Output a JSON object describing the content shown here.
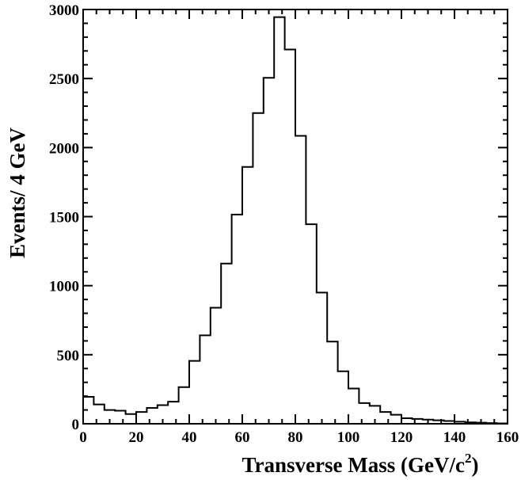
{
  "chart_data": {
    "type": "histogram",
    "title": "",
    "xlabel": "Transverse Mass (GeV/c",
    "xlabel_superscript": "2",
    "xlabel_close": ")",
    "ylabel": "Events/ 4 GeV",
    "xlim": [
      0,
      160
    ],
    "ylim": [
      0,
      3000
    ],
    "bin_width": 4,
    "grid": false,
    "x_ticks": [
      0,
      20,
      40,
      60,
      80,
      100,
      120,
      140,
      160
    ],
    "y_ticks": [
      0,
      500,
      1000,
      1500,
      2000,
      2500,
      3000
    ],
    "x_tick_labels": [
      "0",
      "20",
      "40",
      "60",
      "80",
      "100",
      "120",
      "140",
      "160"
    ],
    "y_tick_labels": [
      "0",
      "500",
      "1000",
      "1500",
      "2000",
      "2500",
      "3000"
    ],
    "bin_edges": [
      0,
      4,
      8,
      12,
      16,
      20,
      24,
      28,
      32,
      36,
      40,
      44,
      48,
      52,
      56,
      60,
      64,
      68,
      72,
      76,
      80,
      84,
      88,
      92,
      96,
      100,
      104,
      108,
      112,
      116,
      120,
      124,
      128,
      132,
      136,
      140,
      144,
      148,
      152,
      156,
      160
    ],
    "values": [
      195,
      140,
      100,
      95,
      70,
      85,
      115,
      135,
      160,
      265,
      455,
      640,
      840,
      1160,
      1515,
      1860,
      2250,
      2505,
      2945,
      2710,
      2085,
      1445,
      950,
      595,
      380,
      255,
      150,
      130,
      85,
      65,
      40,
      35,
      30,
      25,
      20,
      15,
      10,
      8,
      5,
      3
    ]
  }
}
